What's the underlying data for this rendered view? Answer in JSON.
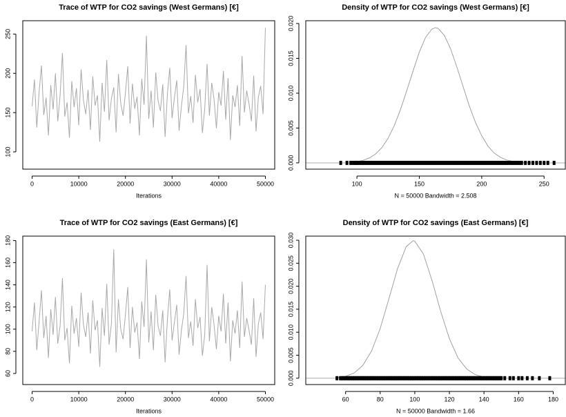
{
  "chart_data": [
    {
      "type": "line",
      "title": "Trace of WTP for CO2 savings (West Germans) [€]",
      "xlabel": "Iterations",
      "color": "#a8a8a8",
      "x": [
        0,
        500,
        1000,
        1500,
        2000,
        2500,
        3000,
        3500,
        4000,
        4500,
        5000,
        5500,
        6000,
        6500,
        7000,
        7500,
        8000,
        8500,
        9000,
        9500,
        10000,
        10500,
        11000,
        11500,
        12000,
        12500,
        13000,
        13500,
        14000,
        14500,
        15000,
        15500,
        16000,
        16500,
        17000,
        17500,
        18000,
        18500,
        19000,
        19500,
        20000,
        20500,
        21000,
        21500,
        22000,
        22500,
        23000,
        23500,
        24000,
        24500,
        25000,
        25500,
        26000,
        26500,
        27000,
        27500,
        28000,
        28500,
        29000,
        29500,
        30000,
        30500,
        31000,
        31500,
        32000,
        32500,
        33000,
        33500,
        34000,
        34500,
        35000,
        35500,
        36000,
        36500,
        37000,
        37500,
        38000,
        38500,
        39000,
        39500,
        40000,
        40500,
        41000,
        41500,
        42000,
        42500,
        43000,
        43500,
        44000,
        44500,
        45000,
        45500,
        46000,
        46500,
        47000,
        47500,
        48000,
        48500,
        49000,
        49500,
        50000
      ],
      "values": [
        158,
        192,
        131,
        176,
        210,
        147,
        169,
        121,
        185,
        154,
        200,
        139,
        172,
        226,
        145,
        163,
        118,
        190,
        157,
        181,
        134,
        205,
        166,
        148,
        179,
        128,
        196,
        159,
        172,
        113,
        188,
        151,
        217,
        140,
        168,
        182,
        125,
        199,
        162,
        146,
        175,
        209,
        136,
        187,
        155,
        170,
        121,
        193,
        160,
        248,
        142,
        178,
        131,
        201,
        165,
        152,
        186,
        119,
        174,
        207,
        143,
        169,
        191,
        127,
        158,
        183,
        236,
        149,
        171,
        137,
        198,
        163,
        180,
        124,
        155,
        212,
        146,
        188,
        167,
        130,
        176,
        159,
        203,
        141,
        194,
        115,
        172,
        157,
        185,
        133,
        222,
        150,
        178,
        161,
        139,
        197,
        126,
        170,
        184,
        148,
        258
      ],
      "xlim": [
        -2000,
        52000
      ],
      "xticks": [
        0,
        10000,
        20000,
        30000,
        40000,
        50000
      ],
      "ylim": [
        78,
        267
      ],
      "yticks": [
        100,
        150,
        200,
        250
      ]
    },
    {
      "type": "density",
      "title": "Density of WTP for CO2 savings (West Germans) [€]",
      "xlabel": "N = 50000   Bandwidth = 2.508",
      "color": "#a0a0a0",
      "rug_color": "#000000",
      "x": [
        95,
        100,
        105,
        110,
        115,
        120,
        125,
        130,
        135,
        140,
        145,
        150,
        155,
        160,
        163,
        165,
        170,
        175,
        180,
        185,
        190,
        195,
        200,
        205,
        210,
        215,
        220,
        225,
        230,
        235,
        240
      ],
      "values": [
        8e-05,
        0.00018,
        0.00037,
        0.00071,
        0.00128,
        0.00219,
        0.00354,
        0.00537,
        0.0077,
        0.0104,
        0.0132,
        0.0159,
        0.018,
        0.0192,
        0.0194,
        0.0193,
        0.0183,
        0.0164,
        0.0138,
        0.011,
        0.0082,
        0.0058,
        0.0039,
        0.0024,
        0.0014,
        0.0008,
        0.00042,
        0.00021,
        0.0001,
        4e-05,
        1e-05
      ],
      "rug": [
        87,
        92,
        95,
        97,
        99,
        100,
        102,
        104,
        106,
        108,
        110,
        112,
        114,
        116,
        118,
        120,
        122,
        124,
        126,
        128,
        130,
        132,
        134,
        136,
        138,
        140,
        142,
        144,
        146,
        148,
        150,
        152,
        154,
        156,
        158,
        160,
        162,
        164,
        166,
        168,
        170,
        172,
        174,
        176,
        178,
        180,
        182,
        184,
        186,
        188,
        190,
        192,
        194,
        196,
        198,
        200,
        202,
        204,
        206,
        208,
        210,
        212,
        214,
        216,
        218,
        220,
        222,
        224,
        226,
        228,
        230,
        232,
        235,
        238,
        241,
        244,
        247,
        250,
        253,
        258
      ],
      "xlim": [
        59,
        267
      ],
      "xticks": [
        100,
        150,
        200,
        250
      ],
      "ylim": [
        -0.0009,
        0.0204
      ],
      "yticks": [
        {
          "value": 0,
          "label": "0.000"
        },
        {
          "value": 0.005,
          "label": "0.005"
        },
        {
          "value": 0.01,
          "label": "0.010"
        },
        {
          "value": 0.015,
          "label": "0.015"
        },
        {
          "value": 0.02,
          "label": "0.020"
        }
      ]
    },
    {
      "type": "line",
      "title": "Trace of WTP for CO2 savings (East Germans) [€]",
      "xlabel": "Iterations",
      "color": "#a8a8a8",
      "x": [
        0,
        500,
        1000,
        1500,
        2000,
        2500,
        3000,
        3500,
        4000,
        4500,
        5000,
        5500,
        6000,
        6500,
        7000,
        7500,
        8000,
        8500,
        9000,
        9500,
        10000,
        10500,
        11000,
        11500,
        12000,
        12500,
        13000,
        13500,
        14000,
        14500,
        15000,
        15500,
        16000,
        16500,
        17000,
        17500,
        18000,
        18500,
        19000,
        19500,
        20000,
        20500,
        21000,
        21500,
        22000,
        22500,
        23000,
        23500,
        24000,
        24500,
        25000,
        25500,
        26000,
        26500,
        27000,
        27500,
        28000,
        28500,
        29000,
        29500,
        30000,
        30500,
        31000,
        31500,
        32000,
        32500,
        33000,
        33500,
        34000,
        34500,
        35000,
        35500,
        36000,
        36500,
        37000,
        37500,
        38000,
        38500,
        39000,
        39500,
        40000,
        40500,
        41000,
        41500,
        42000,
        42500,
        43000,
        43500,
        44000,
        44500,
        45000,
        45500,
        46000,
        46500,
        47000,
        47500,
        48000,
        48500,
        49000,
        49500,
        50000
      ],
      "values": [
        98,
        124,
        81,
        107,
        135,
        92,
        112,
        74,
        118,
        95,
        129,
        87,
        103,
        146,
        90,
        101,
        69,
        121,
        96,
        110,
        84,
        133,
        104,
        93,
        115,
        78,
        126,
        99,
        108,
        66,
        119,
        94,
        141,
        86,
        105,
        172,
        79,
        127,
        100,
        91,
        113,
        138,
        83,
        120,
        97,
        106,
        73,
        125,
        102,
        163,
        88,
        116,
        81,
        131,
        103,
        94,
        117,
        70,
        109,
        136,
        90,
        106,
        122,
        77,
        99,
        114,
        148,
        92,
        107,
        85,
        127,
        101,
        111,
        76,
        95,
        158,
        89,
        120,
        104,
        82,
        112,
        98,
        132,
        87,
        124,
        71,
        108,
        96,
        117,
        83,
        143,
        93,
        110,
        99,
        86,
        128,
        75,
        105,
        115,
        91,
        140
      ],
      "xlim": [
        -2000,
        52000
      ],
      "xticks": [
        0,
        10000,
        20000,
        30000,
        40000,
        50000
      ],
      "ylim": [
        50,
        184
      ],
      "yticks": [
        60,
        80,
        100,
        120,
        140,
        160,
        180
      ]
    },
    {
      "type": "density",
      "title": "Density of WTP for CO2 savings (East Germans) [€]",
      "xlabel": "N = 50000   Bandwidth = 1.66",
      "color": "#a0a0a0",
      "rug_color": "#000000",
      "x": [
        55,
        60,
        65,
        70,
        75,
        80,
        85,
        90,
        95,
        99,
        100,
        105,
        110,
        115,
        120,
        125,
        130,
        135,
        140,
        145,
        150
      ],
      "values": [
        0.00013,
        0.00041,
        0.00114,
        0.0028,
        0.0059,
        0.0108,
        0.0172,
        0.0238,
        0.0286,
        0.0299,
        0.0298,
        0.027,
        0.0212,
        0.0145,
        0.0086,
        0.0044,
        0.002,
        0.00077,
        0.00026,
        8e-05,
        2e-05
      ],
      "rug": [
        55,
        57,
        58,
        59,
        60,
        61,
        62,
        63,
        64,
        65,
        66,
        67,
        68,
        69,
        70,
        71,
        72,
        73,
        74,
        75,
        76,
        77,
        78,
        79,
        80,
        81,
        82,
        83,
        84,
        85,
        86,
        87,
        88,
        89,
        90,
        91,
        92,
        93,
        94,
        95,
        96,
        97,
        98,
        99,
        100,
        101,
        102,
        103,
        104,
        105,
        106,
        107,
        108,
        109,
        110,
        111,
        112,
        113,
        114,
        115,
        116,
        117,
        118,
        119,
        120,
        121,
        122,
        123,
        124,
        125,
        126,
        127,
        128,
        129,
        130,
        131,
        132,
        133,
        134,
        135,
        136,
        137,
        138,
        139,
        140,
        141,
        142,
        143,
        144,
        145,
        146,
        147,
        148,
        149,
        150,
        152,
        155,
        157,
        160,
        162,
        165,
        168,
        172,
        178
      ],
      "xlim": [
        37,
        187
      ],
      "xticks": [
        60,
        80,
        100,
        120,
        140,
        160,
        180
      ],
      "ylim": [
        -0.00138,
        0.0309
      ],
      "yticks": [
        {
          "value": 0,
          "label": "0.000"
        },
        {
          "value": 0.005,
          "label": "0.005"
        },
        {
          "value": 0.01,
          "label": "0.010"
        },
        {
          "value": 0.015,
          "label": "0.015"
        },
        {
          "value": 0.02,
          "label": "0.020"
        },
        {
          "value": 0.025,
          "label": "0.025"
        },
        {
          "value": 0.03,
          "label": "0.030"
        }
      ]
    }
  ]
}
